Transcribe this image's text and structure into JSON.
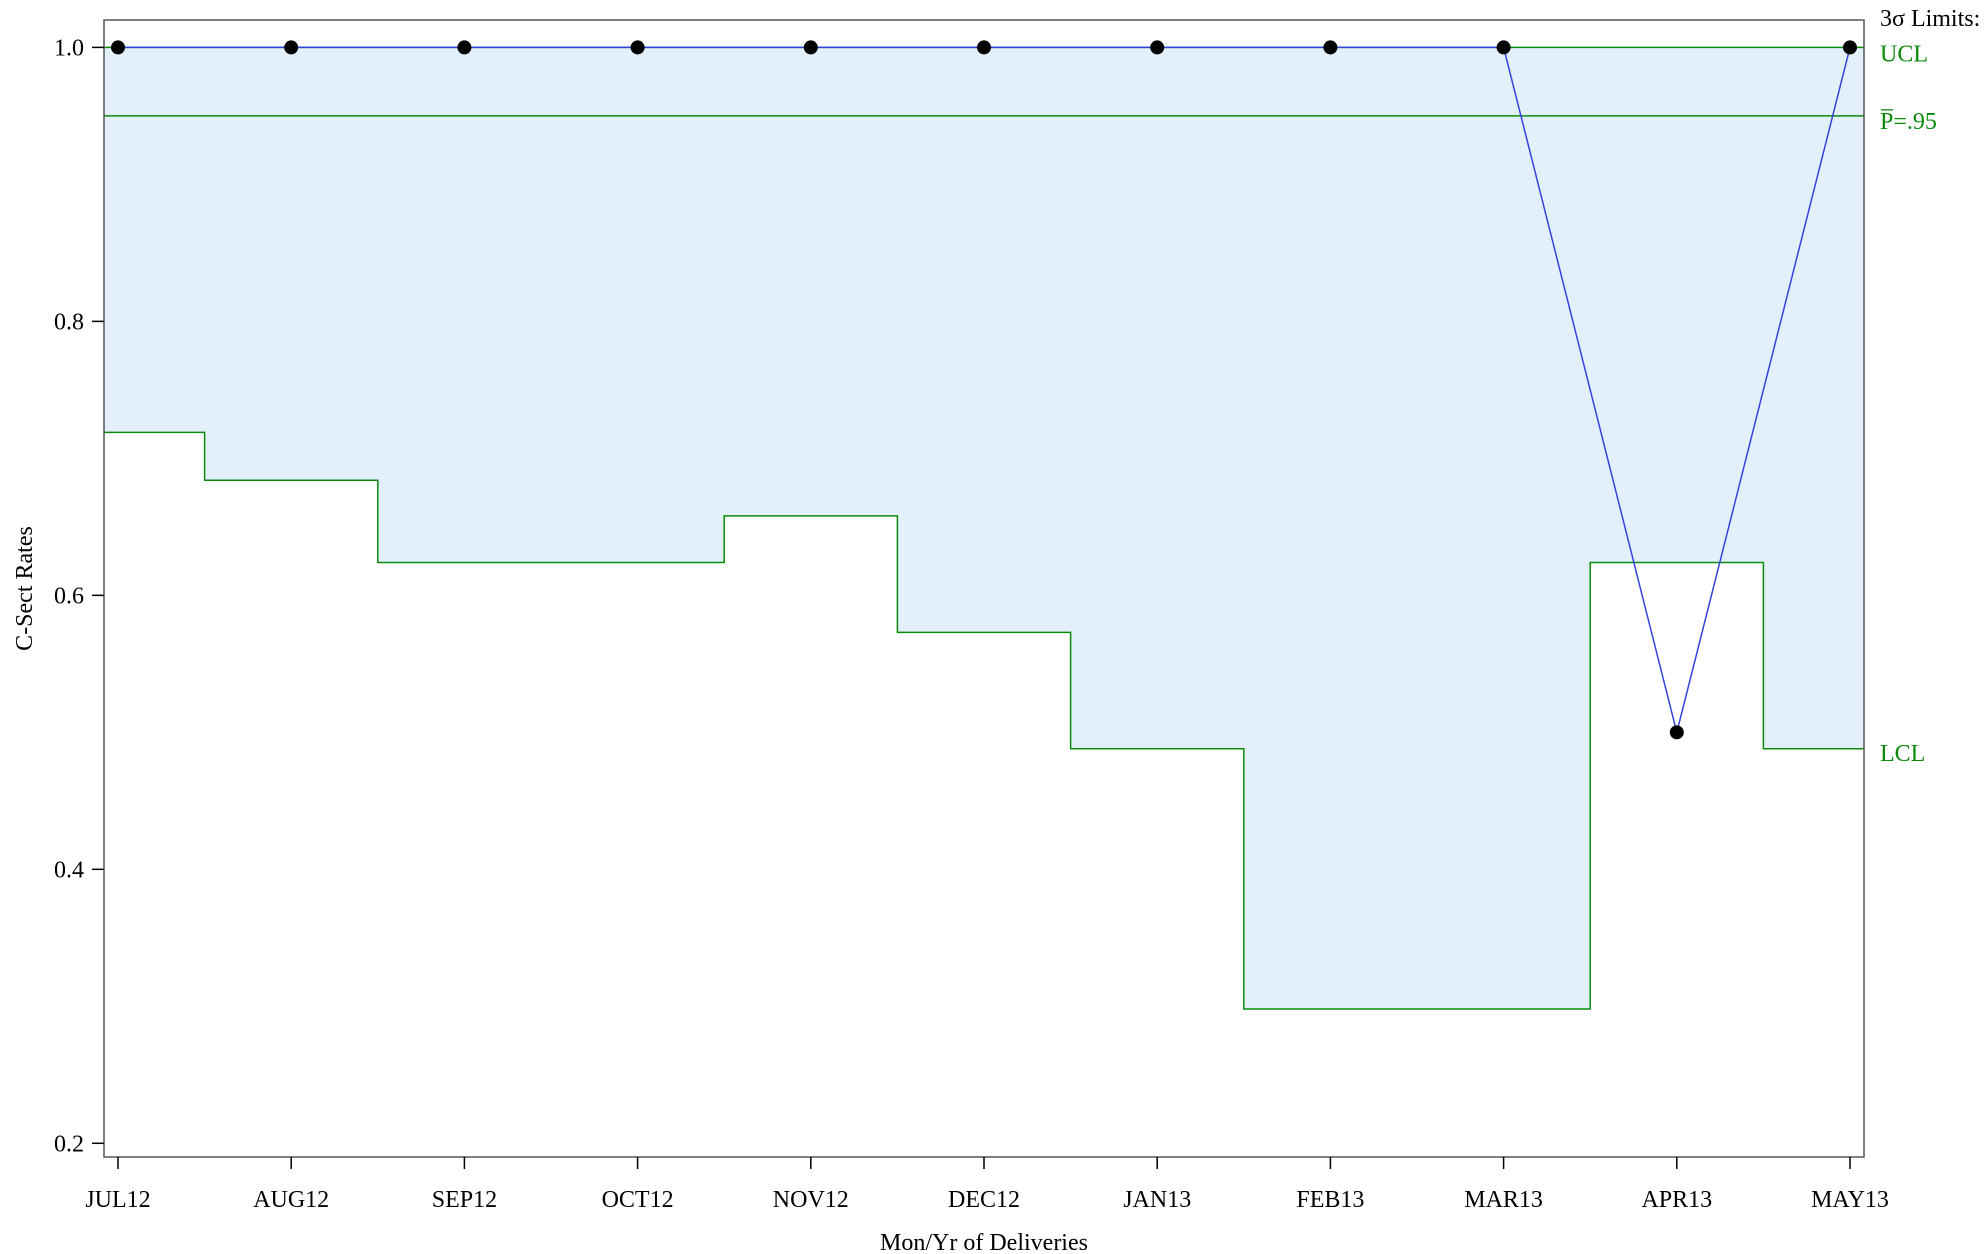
{
  "chart_data": {
    "type": "line",
    "chart_kind": "p-chart",
    "xlabel": "Mon/Yr of Deliveries",
    "ylabel": "C-Sect Rates",
    "categories": [
      "JUL12",
      "AUG12",
      "SEP12",
      "OCT12",
      "NOV12",
      "DEC12",
      "JAN13",
      "FEB13",
      "MAR13",
      "APR13",
      "MAY13"
    ],
    "series": [
      {
        "values": [
          1.0,
          1.0,
          1.0,
          1.0,
          1.0,
          1.0,
          1.0,
          1.0,
          1.0,
          0.5,
          1.0
        ],
        "color": "#3344dd"
      }
    ],
    "ucl": [
      1.0,
      1.0,
      1.0,
      1.0,
      1.0,
      1.0,
      1.0,
      1.0,
      1.0,
      1.0,
      1.0
    ],
    "lcl": [
      0.719,
      0.684,
      0.624,
      0.624,
      0.658,
      0.573,
      0.488,
      0.298,
      0.298,
      0.624,
      0.488
    ],
    "center": 0.95,
    "ylim": [
      0.19,
      1.02
    ],
    "yticks": [
      "0.2",
      "0.4",
      "0.6",
      "0.8",
      "1.0"
    ],
    "limits_title": "3σ Limits:",
    "labels": {
      "ucl": "UCL",
      "center": "P̅=.95",
      "lcl": "LCL"
    },
    "colors": {
      "limits": "#0a8a0a",
      "band": "#e3f0fc",
      "series": "#3344dd",
      "points": "#000000"
    },
    "grid": false
  }
}
